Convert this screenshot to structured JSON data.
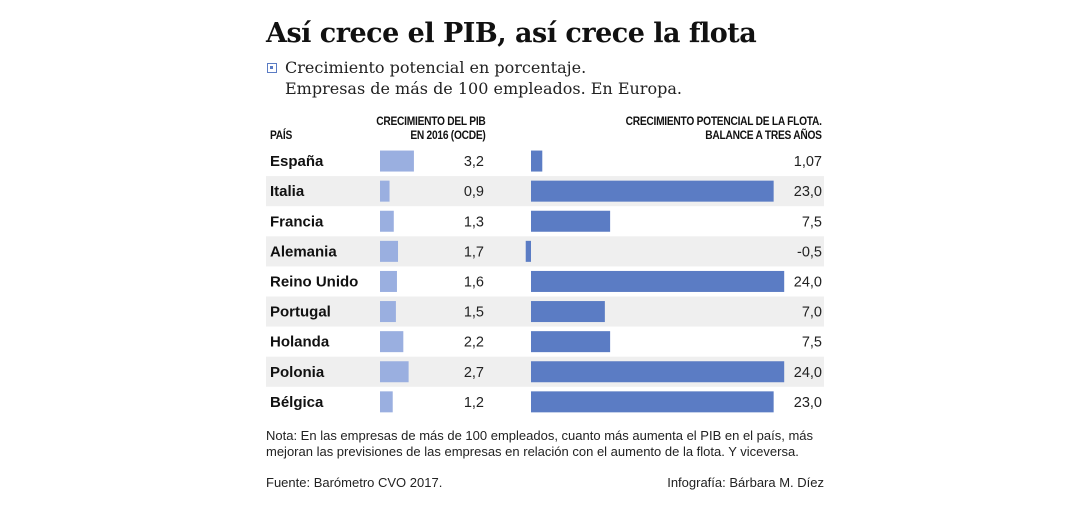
{
  "title": "Así crece el PIB, así crece la flota",
  "legend": {
    "line1": "Crecimiento potencial en porcentaje.",
    "line2": "Empresas de más de 100 empleados. En Europa."
  },
  "headers": {
    "country": "PAÍS",
    "pib_line1": "CRECIMIENTO DEL PIB",
    "pib_line2": "EN 2016 (OCDE)",
    "flota_line1": "CRECIMIENTO POTENCIAL DE LA FLOTA.",
    "flota_line2": "BALANCE A TRES AÑOS"
  },
  "chart_data": {
    "type": "bar",
    "categories": [
      "España",
      "Italia",
      "Francia",
      "Alemania",
      "Reino Unido",
      "Portugal",
      "Holanda",
      "Polonia",
      "Bélgica"
    ],
    "series": [
      {
        "values": [
          3.2,
          0.9,
          1.3,
          1.7,
          1.6,
          1.5,
          2.2,
          2.7,
          1.2
        ],
        "labels": [
          "3,2",
          "0,9",
          "1,3",
          "1,7",
          "1,6",
          "1,5",
          "2,2",
          "2,7",
          "1,2"
        ],
        "color": "#9aafe0"
      },
      {
        "values": [
          1.07,
          23.0,
          7.5,
          -0.5,
          24.0,
          7.0,
          7.5,
          24.0,
          23.0
        ],
        "labels": [
          "1,07",
          "23,0",
          "7,5",
          "-0,5",
          "24,0",
          "7,0",
          "7,5",
          "24,0",
          "23,0"
        ],
        "color": "#5b7cc4"
      }
    ]
  },
  "row_background": "#efefef",
  "note": "Nota: En las empresas de más de 100 empleados, cuanto más aumenta el PIB en el país, más mejoran las previsiones de las empresas en relación con el aumento de la flota. Y viceversa.",
  "source": "Fuente: Barómetro CVO 2017.",
  "credit": "Infografía: Bárbara M. Díez"
}
